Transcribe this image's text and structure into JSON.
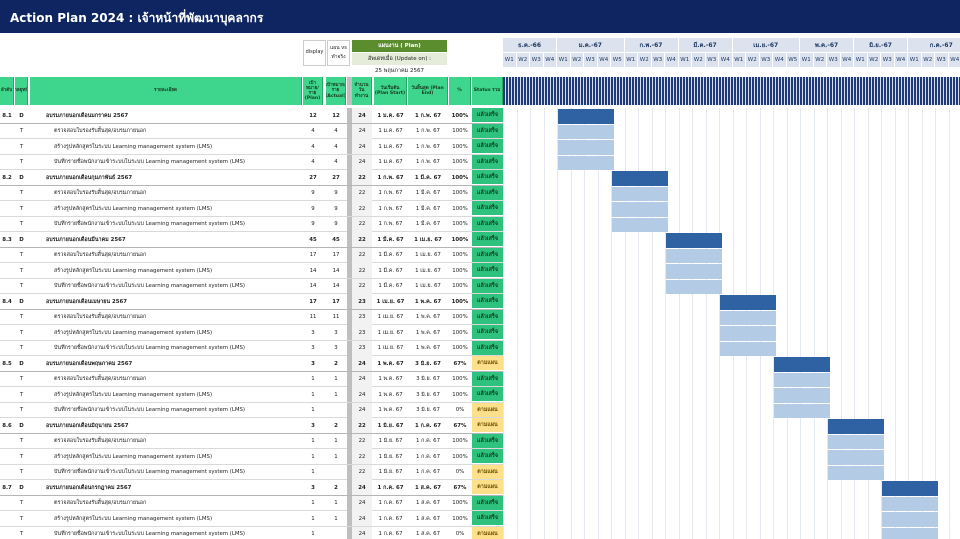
{
  "title": "Action Plan 2024  : เจ้าหน้าที่พัฒนาบุคลากร",
  "header": {
    "display": "display",
    "plan_vs": "แผน vs",
    "actual": "ทำจริง",
    "plan_label": "แผนงาน ( Plan)",
    "update_label": "อัพเดทเมื่อ (Update on) :",
    "update_date": "25 พฤษภาคม 2567",
    "cols": [
      "ลำดับ",
      "กลยุทธ์",
      "รายละเอียด",
      "เป้าหมาย/ราย (Plan)",
      "เป้าหมาย/ราย (Actual)",
      "จำนวน วันทำงาน",
      "วันเริ่มต้น (Plan Start)",
      "วันสิ้นสุด (Plan End)",
      "%",
      "Status รวม"
    ]
  },
  "months": [
    "ธ.ค.-66",
    "ม.ค.-67",
    "ก.พ.-67",
    "มี.ค.-67",
    "เม.ย.-67",
    "พ.ค.-67",
    "มิ.ย.-67",
    "ก.ค.-67"
  ],
  "weeks": [
    "W1",
    "W2",
    "W3",
    "W4",
    "W1",
    "W2",
    "W3",
    "W4",
    "W5",
    "W1",
    "W2",
    "W3",
    "W4",
    "W1",
    "W2",
    "W3",
    "W4",
    "W1",
    "W2",
    "W3",
    "W4",
    "W5",
    "W1",
    "W2",
    "W3",
    "W4",
    "W1",
    "W2",
    "W3",
    "W4",
    "W1",
    "W2",
    "W3",
    "W4",
    "W5",
    "W1"
  ],
  "colors": {
    "done": "#2ec27e",
    "plan": "#ffe08a",
    "bar_dark": "#2e62a3",
    "bar_light": "#b4cbe6"
  },
  "rows": [
    {
      "no": "8.1",
      "type": "D",
      "name": "อบรมภายนอกเดือนมกราคม 2567",
      "plan": "12",
      "actual": "12",
      "days": "24",
      "start": "1 ม.ค. 67",
      "end": "1 ก.พ. 67",
      "pct": "100%",
      "status": "แล้วเสร็จ"
    },
    {
      "no": "",
      "type": "T",
      "name": "ตรวจสอบใบรองรับสิ้นสุด/อบรมภายนอก",
      "plan": "4",
      "actual": "4",
      "days": "24",
      "start": "1 ม.ค. 67",
      "end": "1 ก.พ. 67",
      "pct": "100%",
      "status": "แล้วเสร็จ"
    },
    {
      "no": "",
      "type": "T",
      "name": "สร้างรูปหลักสูตรในระบบ Learning management system (LMS)",
      "plan": "4",
      "actual": "4",
      "days": "24",
      "start": "1 ม.ค. 67",
      "end": "1 ก.พ. 67",
      "pct": "100%",
      "status": "แล้วเสร็จ"
    },
    {
      "no": "",
      "type": "T",
      "name": "บันทึกรายชื่อพนักงานเข้าระบบในระบบ Learning management system (LMS)",
      "plan": "4",
      "actual": "4",
      "days": "24",
      "start": "1 ม.ค. 67",
      "end": "1 ก.พ. 67",
      "pct": "100%",
      "status": "แล้วเสร็จ"
    },
    {
      "no": "8.2",
      "type": "D",
      "name": "อบรมภายนอกเดือนกุมภาพันธ์ 2567",
      "plan": "27",
      "actual": "27",
      "days": "22",
      "start": "1 ก.พ. 67",
      "end": "1 มี.ค. 67",
      "pct": "100%",
      "status": "แล้วเสร็จ"
    },
    {
      "no": "",
      "type": "T",
      "name": "ตรวจสอบใบรองรับสิ้นสุด/อบรมภายนอก",
      "plan": "9",
      "actual": "9",
      "days": "22",
      "start": "1 ก.พ. 67",
      "end": "1 มี.ค. 67",
      "pct": "100%",
      "status": "แล้วเสร็จ"
    },
    {
      "no": "",
      "type": "T",
      "name": "สร้างรูปหลักสูตรในระบบ Learning management system (LMS)",
      "plan": "9",
      "actual": "9",
      "days": "22",
      "start": "1 ก.พ. 67",
      "end": "1 มี.ค. 67",
      "pct": "100%",
      "status": "แล้วเสร็จ"
    },
    {
      "no": "",
      "type": "T",
      "name": "บันทึกรายชื่อพนักงานเข้าระบบในระบบ Learning management system (LMS)",
      "plan": "9",
      "actual": "9",
      "days": "22",
      "start": "1 ก.พ. 67",
      "end": "1 มี.ค. 67",
      "pct": "100%",
      "status": "แล้วเสร็จ"
    },
    {
      "no": "8.3",
      "type": "D",
      "name": "อบรมภายนอกเดือนมีนาคม 2567",
      "plan": "45",
      "actual": "45",
      "days": "22",
      "start": "1 มี.ค. 67",
      "end": "1 เม.ย. 67",
      "pct": "100%",
      "status": "แล้วเสร็จ"
    },
    {
      "no": "",
      "type": "T",
      "name": "ตรวจสอบใบรองรับสิ้นสุด/อบรมภายนอก",
      "plan": "17",
      "actual": "17",
      "days": "22",
      "start": "1 มี.ค. 67",
      "end": "1 เม.ย. 67",
      "pct": "100%",
      "status": "แล้วเสร็จ"
    },
    {
      "no": "",
      "type": "T",
      "name": "สร้างรูปหลักสูตรในระบบ Learning management system (LMS)",
      "plan": "14",
      "actual": "14",
      "days": "22",
      "start": "1 มี.ค. 67",
      "end": "1 เม.ย. 67",
      "pct": "100%",
      "status": "แล้วเสร็จ"
    },
    {
      "no": "",
      "type": "T",
      "name": "บันทึกรายชื่อพนักงานเข้าระบบในระบบ Learning management system (LMS)",
      "plan": "14",
      "actual": "14",
      "days": "22",
      "start": "1 มี.ค. 67",
      "end": "1 เม.ย. 67",
      "pct": "100%",
      "status": "แล้วเสร็จ"
    },
    {
      "no": "8.4",
      "type": "D",
      "name": "อบรมภายนอกเดือนเมษายน 2567",
      "plan": "17",
      "actual": "17",
      "days": "23",
      "start": "1 เม.ย. 67",
      "end": "1 พ.ค. 67",
      "pct": "100%",
      "status": "แล้วเสร็จ"
    },
    {
      "no": "",
      "type": "T",
      "name": "ตรวจสอบใบรองรับสิ้นสุด/อบรมภายนอก",
      "plan": "11",
      "actual": "11",
      "days": "23",
      "start": "1 เม.ย. 67",
      "end": "1 พ.ค. 67",
      "pct": "100%",
      "status": "แล้วเสร็จ"
    },
    {
      "no": "",
      "type": "T",
      "name": "สร้างรูปหลักสูตรในระบบ Learning management system (LMS)",
      "plan": "3",
      "actual": "3",
      "days": "23",
      "start": "1 เม.ย. 67",
      "end": "1 พ.ค. 67",
      "pct": "100%",
      "status": "แล้วเสร็จ"
    },
    {
      "no": "",
      "type": "T",
      "name": "บันทึกรายชื่อพนักงานเข้าระบบในระบบ Learning management system (LMS)",
      "plan": "3",
      "actual": "3",
      "days": "23",
      "start": "1 เม.ย. 67",
      "end": "1 พ.ค. 67",
      "pct": "100%",
      "status": "แล้วเสร็จ"
    },
    {
      "no": "8.5",
      "type": "D",
      "name": "อบรมภายนอกเดือนพฤษภาคม 2567",
      "plan": "3",
      "actual": "2",
      "days": "24",
      "start": "1 พ.ค. 67",
      "end": "3 มิ.ย. 67",
      "pct": "67%",
      "status": "ตามแผน"
    },
    {
      "no": "",
      "type": "T",
      "name": "ตรวจสอบใบรองรับสิ้นสุด/อบรมภายนอก",
      "plan": "1",
      "actual": "1",
      "days": "24",
      "start": "1 พ.ค. 67",
      "end": "3 มิ.ย. 67",
      "pct": "100%",
      "status": "แล้วเสร็จ"
    },
    {
      "no": "",
      "type": "T",
      "name": "สร้างรูปหลักสูตรในระบบ Learning management system (LMS)",
      "plan": "1",
      "actual": "1",
      "days": "24",
      "start": "1 พ.ค. 67",
      "end": "3 มิ.ย. 67",
      "pct": "100%",
      "status": "แล้วเสร็จ"
    },
    {
      "no": "",
      "type": "T",
      "name": "บันทึกรายชื่อพนักงานเข้าระบบในระบบ Learning management system (LMS)",
      "plan": "1",
      "actual": "",
      "days": "24",
      "start": "1 พ.ค. 67",
      "end": "3 มิ.ย. 67",
      "pct": "0%",
      "status": "ตามแผน"
    },
    {
      "no": "8.6",
      "type": "D",
      "name": "อบรมภายนอกเดือนมิถุนายน 2567",
      "plan": "3",
      "actual": "2",
      "days": "22",
      "start": "1 มิ.ย. 67",
      "end": "1 ก.ค. 67",
      "pct": "67%",
      "status": "ตามแผน"
    },
    {
      "no": "",
      "type": "T",
      "name": "ตรวจสอบใบรองรับสิ้นสุด/อบรมภายนอก",
      "plan": "1",
      "actual": "1",
      "days": "22",
      "start": "1 มิ.ย. 67",
      "end": "1 ก.ค. 67",
      "pct": "100%",
      "status": "แล้วเสร็จ"
    },
    {
      "no": "",
      "type": "T",
      "name": "สร้างรูปหลักสูตรในระบบ Learning management system (LMS)",
      "plan": "1",
      "actual": "1",
      "days": "22",
      "start": "1 มิ.ย. 67",
      "end": "1 ก.ค. 67",
      "pct": "100%",
      "status": "แล้วเสร็จ"
    },
    {
      "no": "",
      "type": "T",
      "name": "บันทึกรายชื่อพนักงานเข้าระบบในระบบ Learning management system (LMS)",
      "plan": "1",
      "actual": "",
      "days": "22",
      "start": "1 มิ.ย. 67",
      "end": "1 ก.ค. 67",
      "pct": "0%",
      "status": "ตามแผน"
    },
    {
      "no": "8.7",
      "type": "D",
      "name": "อบรมภายนอกเดือนกรกฎาคม 2567",
      "plan": "3",
      "actual": "2",
      "days": "24",
      "start": "1 ก.ค. 67",
      "end": "1 ส.ค. 67",
      "pct": "67%",
      "status": "ตามแผน"
    },
    {
      "no": "",
      "type": "T",
      "name": "ตรวจสอบใบรองรับสิ้นสุด/อบรมภายนอก",
      "plan": "1",
      "actual": "1",
      "days": "24",
      "start": "1 ก.ค. 67",
      "end": "1 ส.ค. 67",
      "pct": "100%",
      "status": "แล้วเสร็จ"
    },
    {
      "no": "",
      "type": "T",
      "name": "สร้างรูปหลักสูตรในระบบ Learning management system (LMS)",
      "plan": "1",
      "actual": "1",
      "days": "24",
      "start": "1 ก.ค. 67",
      "end": "1 ส.ค. 67",
      "pct": "100%",
      "status": "แล้วเสร็จ"
    },
    {
      "no": "",
      "type": "T",
      "name": "บันทึกรายชื่อพนักงานเข้าระบบในระบบ Learning management system (LMS)",
      "plan": "1",
      "actual": "",
      "days": "24",
      "start": "1 ก.ค. 67",
      "end": "1 ส.ค. 67",
      "pct": "0%",
      "status": "ตามแผน"
    }
  ]
}
